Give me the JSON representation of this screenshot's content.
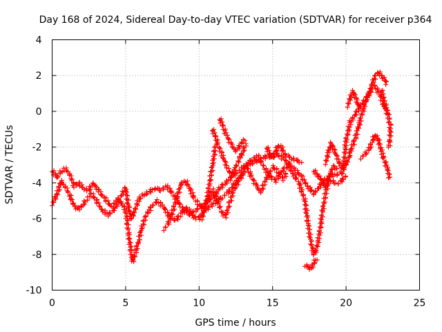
{
  "chart_data": {
    "type": "scatter",
    "title": "Day 168 of 2024, Sidereal Day-to-day VTEC variation (SDTVAR) for receiver p364",
    "xlabel": "GPS time / hours",
    "ylabel": "SDTVAR / TECUs",
    "xlim": [
      0,
      25
    ],
    "ylim": [
      -10,
      4
    ],
    "xticks": [
      0,
      5,
      10,
      15,
      20,
      25
    ],
    "yticks": [
      -10,
      -8,
      -6,
      -4,
      -2,
      0,
      2,
      4
    ],
    "grid": true,
    "marker": "+",
    "series": [
      {
        "name": "SDTVAR",
        "color": "#ff0000",
        "segments": [
          [
            [
              0.0,
              -3.3
            ],
            [
              0.3,
              -3.7
            ],
            [
              0.6,
              -3.4
            ],
            [
              0.9,
              -3.2
            ],
            [
              1.2,
              -3.5
            ],
            [
              1.5,
              -4.2
            ],
            [
              1.8,
              -4.0
            ],
            [
              2.1,
              -4.3
            ],
            [
              2.5,
              -4.4
            ],
            [
              2.8,
              -4.0
            ],
            [
              3.2,
              -4.5
            ],
            [
              3.6,
              -4.9
            ],
            [
              4.0,
              -5.3
            ],
            [
              4.4,
              -5.0
            ],
            [
              4.8,
              -4.6
            ],
            [
              5.0,
              -4.3
            ],
            [
              5.2,
              -5.4
            ],
            [
              5.4,
              -6.0
            ],
            [
              5.6,
              -5.6
            ],
            [
              5.9,
              -4.9
            ],
            [
              6.2,
              -4.7
            ],
            [
              6.6,
              -4.5
            ],
            [
              7.0,
              -4.3
            ],
            [
              7.4,
              -4.4
            ],
            [
              7.8,
              -4.2
            ],
            [
              8.2,
              -4.6
            ],
            [
              8.6,
              -5.1
            ],
            [
              9.0,
              -5.6
            ],
            [
              9.4,
              -5.8
            ],
            [
              9.8,
              -5.5
            ],
            [
              10.2,
              -5.3
            ],
            [
              10.6,
              -5.0
            ],
            [
              11.0,
              -4.8
            ],
            [
              11.4,
              -4.3
            ],
            [
              11.8,
              -4.0
            ],
            [
              12.2,
              -3.7
            ],
            [
              12.6,
              -3.4
            ],
            [
              13.0,
              -3.1
            ],
            [
              13.4,
              -3.0
            ],
            [
              13.8,
              -2.8
            ],
            [
              14.2,
              -2.7
            ],
            [
              14.6,
              -2.5
            ],
            [
              15.0,
              -2.6
            ],
            [
              15.4,
              -2.4
            ],
            [
              15.8,
              -2.7
            ],
            [
              16.2,
              -3.0
            ],
            [
              16.6,
              -3.3
            ],
            [
              17.0,
              -3.7
            ],
            [
              17.4,
              -4.2
            ],
            [
              17.8,
              -4.6
            ],
            [
              18.2,
              -4.2
            ],
            [
              18.6,
              -3.8
            ],
            [
              19.0,
              -3.6
            ],
            [
              19.4,
              -3.5
            ],
            [
              19.8,
              -3.4
            ],
            [
              20.0,
              -1.6
            ],
            [
              20.3,
              -0.6
            ],
            [
              20.6,
              -0.2
            ],
            [
              21.0,
              0.3
            ],
            [
              21.4,
              0.8
            ],
            [
              21.7,
              1.2
            ],
            [
              22.0,
              1.4
            ],
            [
              22.3,
              0.9
            ],
            [
              22.6,
              0.3
            ],
            [
              22.9,
              -0.3
            ]
          ],
          [
            [
              0.0,
              -5.2
            ],
            [
              0.2,
              -4.9
            ],
            [
              0.4,
              -4.5
            ],
            [
              0.6,
              -3.9
            ],
            [
              0.9,
              -4.2
            ],
            [
              1.2,
              -4.7
            ],
            [
              1.5,
              -5.3
            ],
            [
              1.8,
              -5.5
            ],
            [
              2.1,
              -5.2
            ],
            [
              2.4,
              -4.9
            ],
            [
              2.7,
              -4.6
            ],
            [
              3.0,
              -5.0
            ],
            [
              3.4,
              -5.5
            ],
            [
              3.8,
              -5.8
            ],
            [
              4.2,
              -5.5
            ],
            [
              4.6,
              -5.0
            ],
            [
              5.0,
              -5.5
            ],
            [
              5.2,
              -6.8
            ],
            [
              5.4,
              -8.1
            ],
            [
              5.5,
              -8.4
            ],
            [
              5.7,
              -7.8
            ],
            [
              5.9,
              -7.2
            ],
            [
              6.1,
              -6.5
            ],
            [
              6.4,
              -5.8
            ],
            [
              6.8,
              -5.3
            ],
            [
              7.2,
              -5.0
            ],
            [
              7.6,
              -5.4
            ],
            [
              8.0,
              -5.9
            ],
            [
              8.4,
              -6.1
            ],
            [
              8.8,
              -5.7
            ],
            [
              9.2,
              -5.4
            ],
            [
              9.6,
              -5.9
            ],
            [
              10.0,
              -6.0
            ],
            [
              10.4,
              -5.5
            ],
            [
              10.8,
              -5.3
            ],
            [
              11.2,
              -5.0
            ],
            [
              11.6,
              -4.8
            ],
            [
              12.0,
              -4.5
            ],
            [
              12.4,
              -4.1
            ],
            [
              12.8,
              -3.6
            ],
            [
              13.2,
              -3.0
            ],
            [
              13.6,
              -2.7
            ],
            [
              14.0,
              -2.5
            ],
            [
              14.4,
              -3.1
            ],
            [
              14.8,
              -3.6
            ],
            [
              15.2,
              -3.9
            ],
            [
              15.6,
              -3.4
            ],
            [
              16.0,
              -3.0
            ],
            [
              16.4,
              -3.5
            ],
            [
              16.8,
              -4.0
            ],
            [
              17.2,
              -5.0
            ],
            [
              17.4,
              -6.2
            ],
            [
              17.6,
              -7.3
            ],
            [
              17.8,
              -8.0
            ],
            [
              18.0,
              -7.7
            ],
            [
              18.2,
              -6.8
            ],
            [
              18.4,
              -5.6
            ],
            [
              18.6,
              -4.6
            ],
            [
              18.8,
              -4.0
            ],
            [
              19.0,
              -3.9
            ],
            [
              19.4,
              -4.1
            ],
            [
              19.8,
              -3.8
            ],
            [
              20.0,
              -3.6
            ]
          ],
          [
            [
              7.6,
              -6.6
            ],
            [
              7.9,
              -6.3
            ],
            [
              8.2,
              -5.6
            ],
            [
              8.5,
              -4.8
            ],
            [
              8.8,
              -4.0
            ],
            [
              9.1,
              -3.9
            ],
            [
              9.4,
              -4.4
            ],
            [
              9.7,
              -4.9
            ],
            [
              10.0,
              -5.2
            ],
            [
              10.3,
              -5.5
            ],
            [
              10.6,
              -5.0
            ],
            [
              10.9,
              -4.4
            ],
            [
              11.2,
              -4.8
            ],
            [
              11.5,
              -5.6
            ],
            [
              11.8,
              -5.9
            ],
            [
              12.1,
              -5.1
            ],
            [
              12.4,
              -4.3
            ],
            [
              12.7,
              -3.9
            ],
            [
              13.0,
              -3.5
            ],
            [
              13.3,
              -3.2
            ],
            [
              13.6,
              -3.7
            ],
            [
              13.9,
              -4.2
            ],
            [
              14.2,
              -4.5
            ],
            [
              14.5,
              -3.9
            ],
            [
              14.8,
              -3.4
            ],
            [
              15.1,
              -3.1
            ],
            [
              15.4,
              -3.4
            ],
            [
              15.7,
              -3.8
            ],
            [
              16.0,
              -3.4
            ]
          ],
          [
            [
              10.2,
              -6.0
            ],
            [
              10.4,
              -5.3
            ],
            [
              10.6,
              -4.6
            ],
            [
              10.8,
              -3.6
            ],
            [
              11.0,
              -2.6
            ],
            [
              11.1,
              -1.9
            ]
          ],
          [
            [
              10.9,
              -1.0
            ],
            [
              11.1,
              -1.4
            ],
            [
              11.3,
              -1.9
            ],
            [
              11.6,
              -2.5
            ],
            [
              11.9,
              -3.1
            ],
            [
              12.2,
              -3.6
            ],
            [
              12.5,
              -3.1
            ],
            [
              12.8,
              -2.6
            ],
            [
              13.0,
              -2.2
            ],
            [
              13.2,
              -1.8
            ]
          ],
          [
            [
              11.4,
              -0.4
            ],
            [
              11.6,
              -0.8
            ],
            [
              11.9,
              -1.4
            ],
            [
              12.2,
              -1.9
            ],
            [
              12.5,
              -2.2
            ],
            [
              12.8,
              -1.9
            ],
            [
              13.1,
              -1.5
            ]
          ],
          [
            [
              14.6,
              -2.0
            ],
            [
              14.8,
              -2.4
            ],
            [
              15.0,
              -2.6
            ],
            [
              15.2,
              -2.2
            ],
            [
              15.4,
              -1.9
            ],
            [
              15.6,
              -2.0
            ],
            [
              15.8,
              -2.4
            ],
            [
              16.2,
              -2.6
            ],
            [
              16.6,
              -2.7
            ],
            [
              17.0,
              -2.9
            ]
          ],
          [
            [
              17.2,
              -8.6
            ],
            [
              17.4,
              -8.7
            ],
            [
              17.6,
              -8.8
            ],
            [
              17.8,
              -8.5
            ],
            [
              18.0,
              -8.2
            ]
          ],
          [
            [
              17.8,
              -3.3
            ],
            [
              18.0,
              -3.5
            ],
            [
              18.2,
              -3.7
            ],
            [
              18.4,
              -4.0
            ],
            [
              18.6,
              -4.2
            ],
            [
              18.8,
              -3.8
            ],
            [
              19.0,
              -3.3
            ],
            [
              19.2,
              -3.1
            ],
            [
              19.4,
              -3.3
            ]
          ],
          [
            [
              18.6,
              -2.9
            ],
            [
              18.8,
              -2.3
            ],
            [
              19.0,
              -1.8
            ],
            [
              19.2,
              -2.2
            ],
            [
              19.4,
              -2.6
            ],
            [
              19.6,
              -3.0
            ],
            [
              19.8,
              -3.2
            ],
            [
              20.0,
              -3.0
            ],
            [
              20.2,
              -2.5
            ],
            [
              20.4,
              -2.0
            ],
            [
              20.6,
              -1.6
            ],
            [
              20.8,
              -1.0
            ],
            [
              21.0,
              -0.4
            ],
            [
              21.2,
              0.2
            ],
            [
              21.4,
              0.7
            ],
            [
              21.6,
              1.0
            ],
            [
              21.8,
              1.6
            ],
            [
              22.0,
              2.0
            ],
            [
              22.2,
              2.2
            ],
            [
              22.4,
              2.0
            ],
            [
              22.6,
              1.8
            ],
            [
              22.8,
              1.5
            ]
          ],
          [
            [
              20.1,
              0.3
            ],
            [
              20.3,
              0.8
            ],
            [
              20.5,
              1.1
            ],
            [
              20.7,
              0.6
            ],
            [
              20.9,
              0.2
            ]
          ],
          [
            [
              21.0,
              -2.6
            ],
            [
              21.3,
              -2.4
            ],
            [
              21.6,
              -2.1
            ],
            [
              21.8,
              -1.6
            ],
            [
              22.0,
              -1.3
            ],
            [
              22.2,
              -1.6
            ],
            [
              22.4,
              -2.2
            ],
            [
              22.6,
              -2.7
            ],
            [
              22.8,
              -3.2
            ],
            [
              23.0,
              -3.8
            ]
          ],
          [
            [
              22.4,
              1.2
            ],
            [
              22.6,
              0.6
            ],
            [
              22.8,
              0.0
            ],
            [
              23.0,
              -0.8
            ],
            [
              23.0,
              -1.6
            ],
            [
              22.9,
              -2.1
            ]
          ]
        ]
      }
    ]
  }
}
